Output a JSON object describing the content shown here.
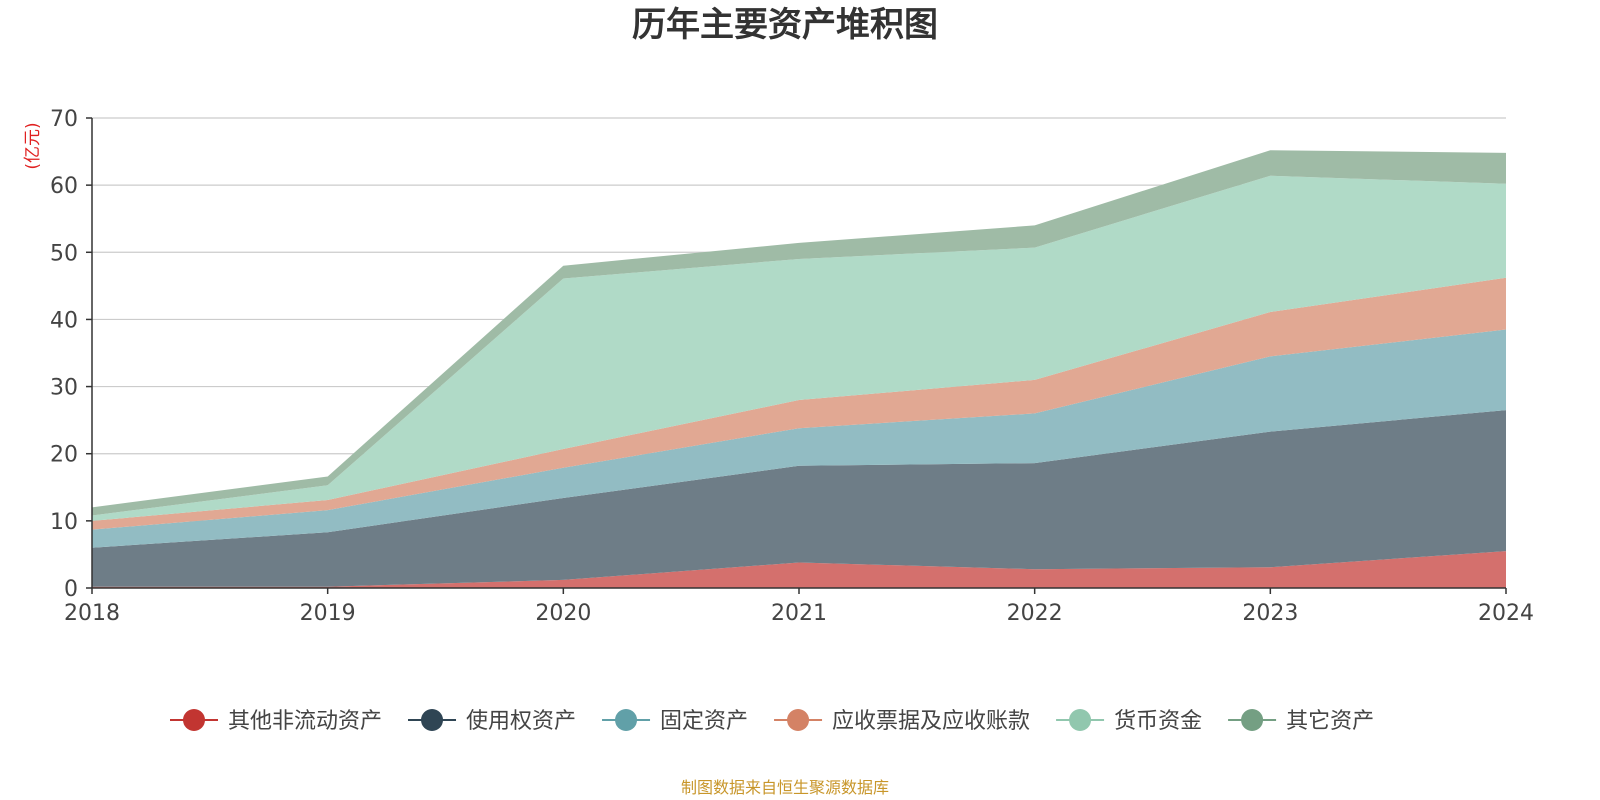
{
  "chart_data": {
    "type": "area",
    "stacked": true,
    "title": "历年主要资产堆积图",
    "unit_label": "(亿元)",
    "xlabel": "",
    "ylabel": "",
    "categories": [
      "2018",
      "2019",
      "2020",
      "2021",
      "2022",
      "2023",
      "2024"
    ],
    "ylim": [
      0,
      70
    ],
    "yticks": [
      0,
      10,
      20,
      30,
      40,
      50,
      60,
      70
    ],
    "grid": true,
    "legend_position": "bottom",
    "series": [
      {
        "name": "其他非流动资产",
        "color": "#c23531",
        "fill": "#d4706d",
        "values": [
          0.2,
          0.2,
          1.2,
          3.8,
          2.8,
          3.1,
          5.5
        ]
      },
      {
        "name": "使用权资产",
        "color": "#2f4554",
        "fill": "#6e7d87",
        "values": [
          5.8,
          8.1,
          12.2,
          14.4,
          15.8,
          20.2,
          21.0
        ]
      },
      {
        "name": "固定资产",
        "color": "#61a0a8",
        "fill": "#92bcc3",
        "values": [
          2.7,
          3.3,
          4.5,
          5.6,
          7.4,
          11.2,
          12.0
        ]
      },
      {
        "name": "应收票据及应收账款",
        "color": "#d48265",
        "fill": "#e1a893",
        "values": [
          1.3,
          1.5,
          2.8,
          4.2,
          5.0,
          6.6,
          7.7
        ]
      },
      {
        "name": "货币资金",
        "color": "#91c7ae",
        "fill": "#b0dac7",
        "values": [
          0.8,
          2.2,
          25.4,
          21.0,
          19.7,
          20.3,
          14.0
        ]
      },
      {
        "name": "其它资产",
        "color": "#749f83",
        "fill": "#9fbba6",
        "values": [
          1.2,
          1.3,
          1.9,
          2.4,
          3.3,
          3.8,
          4.6
        ]
      }
    ],
    "source_note": "制图数据来自恒生聚源数据库"
  }
}
